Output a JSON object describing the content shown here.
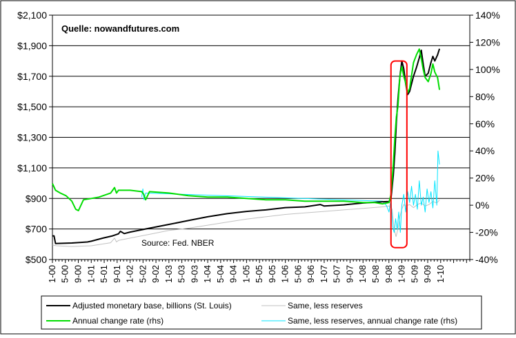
{
  "chart_data": {
    "type": "line",
    "annotations": [
      "Quelle: nowandfutures.com",
      "Source: Fed. NBER"
    ],
    "y_left": {
      "ylim": [
        500,
        2100
      ],
      "ticks": [
        500,
        700,
        900,
        1100,
        1300,
        1500,
        1700,
        1900,
        2100
      ],
      "tick_labels": [
        "$500",
        "$700",
        "$900",
        "$1,100",
        "$1,300",
        "$1,500",
        "$1,700",
        "$1,900",
        "$2,100"
      ]
    },
    "y_right": {
      "ylim": [
        -40,
        140
      ],
      "ticks": [
        -40,
        -20,
        0,
        20,
        40,
        60,
        80,
        100,
        120,
        140
      ],
      "tick_labels": [
        "-40%",
        "-20%",
        "0%",
        "20%",
        "40%",
        "60%",
        "80%",
        "100%",
        "120%",
        "140%"
      ]
    },
    "x_axis": {
      "range": [
        2000.0,
        2010.75
      ],
      "ticks": [
        2000.0,
        2000.333,
        2000.667,
        2001.0,
        2001.333,
        2001.667,
        2002.0,
        2002.333,
        2002.667,
        2003.0,
        2003.333,
        2003.667,
        2004.0,
        2004.333,
        2004.667,
        2005.0,
        2005.333,
        2005.667,
        2006.0,
        2006.333,
        2006.667,
        2007.0,
        2007.333,
        2007.667,
        2008.0,
        2008.333,
        2008.667,
        2009.0,
        2009.333,
        2009.667,
        2010.0
      ],
      "tick_labels": [
        "1-00",
        "5-00",
        "9-00",
        "1-01",
        "5-01",
        "9-01",
        "1-02",
        "5-02",
        "9-02",
        "1-03",
        "5-03",
        "9-03",
        "1-04",
        "5-04",
        "9-04",
        "1-05",
        "5-05",
        "9-05",
        "1-06",
        "5-06",
        "9-06",
        "1-07",
        "5-07",
        "9-07",
        "1-08",
        "5-08",
        "9-08",
        "1-09",
        "5-09",
        "9-09",
        "1-10"
      ]
    },
    "series": [
      {
        "name": "Adjusted monetary base, billions (St. Louis)",
        "axis": "left",
        "color": "#000000",
        "x": [
          2000.0,
          2000.04,
          2000.08,
          2000.5,
          2000.9,
          2001.0,
          2001.3,
          2001.55,
          2001.7,
          2001.75,
          2001.85,
          2002.0,
          2002.5,
          2003.0,
          2003.5,
          2004.0,
          2004.5,
          2005.0,
          2005.5,
          2006.0,
          2006.5,
          2006.9,
          2007.0,
          2007.5,
          2008.0,
          2008.5,
          2008.67,
          2008.72,
          2008.78,
          2008.82,
          2008.86,
          2008.9,
          2008.95,
          2009.0,
          2009.05,
          2009.1,
          2009.15,
          2009.2,
          2009.3,
          2009.38,
          2009.45,
          2009.5,
          2009.55,
          2009.6,
          2009.68,
          2009.75,
          2009.8,
          2009.85,
          2009.92,
          2009.97
        ],
        "values": [
          655,
          655,
          605,
          608,
          615,
          620,
          640,
          655,
          668,
          685,
          670,
          680,
          705,
          730,
          755,
          780,
          800,
          815,
          825,
          840,
          845,
          860,
          850,
          858,
          870,
          878,
          880,
          900,
          1050,
          1200,
          1400,
          1550,
          1700,
          1800,
          1750,
          1650,
          1580,
          1600,
          1700,
          1760,
          1820,
          1870,
          1780,
          1700,
          1720,
          1790,
          1830,
          1800,
          1840,
          1880
        ]
      },
      {
        "name": "Same, less reserves",
        "axis": "left",
        "color": "#c0c0c0",
        "x": [
          2000.0,
          2000.1,
          2000.5,
          2001.0,
          2001.5,
          2001.6,
          2001.65,
          2001.7,
          2002.0,
          2002.5,
          2003.0,
          2003.5,
          2004.0,
          2004.5,
          2005.0,
          2005.5,
          2006.0,
          2006.5,
          2007.0,
          2007.5,
          2008.0,
          2008.5,
          2008.67,
          2008.75,
          2008.8,
          2008.85,
          2008.9,
          2008.95,
          2009.0,
          2009.05,
          2009.1,
          2009.2,
          2009.3,
          2009.4,
          2009.5,
          2009.6,
          2009.7,
          2009.8,
          2009.9,
          2009.97
        ],
        "values": [
          595,
          590,
          585,
          590,
          610,
          640,
          615,
          625,
          640,
          665,
          690,
          705,
          725,
          745,
          765,
          780,
          795,
          805,
          815,
          825,
          835,
          845,
          850,
          830,
          700,
          650,
          700,
          780,
          830,
          860,
          850,
          860,
          840,
          860,
          870,
          850,
          860,
          880,
          870,
          890
        ]
      },
      {
        "name": "Annual change rate (rhs)",
        "axis": "right",
        "color": "#00dd00",
        "x": [
          2000.0,
          2000.08,
          2000.2,
          2000.35,
          2000.5,
          2000.6,
          2000.67,
          2000.8,
          2001.0,
          2001.2,
          2001.5,
          2001.6,
          2001.65,
          2001.7,
          2002.0,
          2002.3,
          2002.35,
          2002.4,
          2002.5,
          2003.0,
          2003.5,
          2004.0,
          2004.5,
          2005.0,
          2005.5,
          2006.0,
          2006.5,
          2007.0,
          2007.5,
          2008.0,
          2008.3,
          2008.5,
          2008.67,
          2008.72,
          2008.78,
          2008.82,
          2008.86,
          2008.9,
          2008.95,
          2009.0,
          2009.05,
          2009.1,
          2009.15,
          2009.2,
          2009.3,
          2009.38,
          2009.45,
          2009.5,
          2009.55,
          2009.6,
          2009.68,
          2009.75,
          2009.8,
          2009.85,
          2009.92,
          2009.97
        ],
        "values": [
          16,
          11,
          9,
          7,
          3,
          -3,
          -4,
          4,
          5,
          6,
          9,
          13,
          9,
          11,
          11,
          10,
          8,
          4,
          10,
          9,
          7,
          6,
          6,
          5,
          4,
          4,
          3,
          3,
          3,
          2,
          2,
          1,
          2,
          8,
          30,
          50,
          65,
          73,
          95,
          102,
          95,
          90,
          83,
          86,
          105,
          111,
          115,
          108,
          100,
          94,
          91,
          97,
          104,
          98,
          94,
          85
        ]
      },
      {
        "name": "Same, less reserves, annual change rate (rhs)",
        "axis": "right",
        "color": "#00e5ff",
        "x": [
          2002.3,
          2002.33,
          2002.36,
          2002.4,
          2008.5,
          2008.6,
          2008.67,
          2008.72,
          2008.76,
          2008.8,
          2008.84,
          2008.88,
          2008.92,
          2008.96,
          2009.0,
          2009.05,
          2009.1,
          2009.15,
          2009.2,
          2009.25,
          2009.3,
          2009.35,
          2009.4,
          2009.45,
          2009.5,
          2009.55,
          2009.6,
          2009.65,
          2009.7,
          2009.75,
          2009.8,
          2009.85,
          2009.9,
          2009.93,
          2009.97
        ],
        "values": [
          6,
          12,
          4,
          9,
          3,
          0,
          -5,
          5,
          -15,
          -20,
          -10,
          -18,
          -5,
          -20,
          0,
          8,
          -5,
          10,
          2,
          14,
          0,
          8,
          -3,
          18,
          0,
          6,
          -5,
          12,
          2,
          10,
          -2,
          18,
          0,
          40,
          30
        ]
      }
    ],
    "highlight_box": {
      "color": "#ff0000",
      "x": [
        2008.72,
        2009.13
      ],
      "y_left": [
        578,
        1800
      ]
    },
    "legend": {
      "placement": "bottom",
      "entries": [
        {
          "label": "Adjusted monetary base, billions (St. Louis)",
          "color": "#000000"
        },
        {
          "label": "Same, less reserves",
          "color": "#c0c0c0"
        },
        {
          "label": "Annual change rate (rhs)",
          "color": "#00dd00"
        },
        {
          "label": "Same, less reserves, annual change rate (rhs)",
          "color": "#00e5ff"
        }
      ]
    },
    "grid": "horizontal"
  }
}
